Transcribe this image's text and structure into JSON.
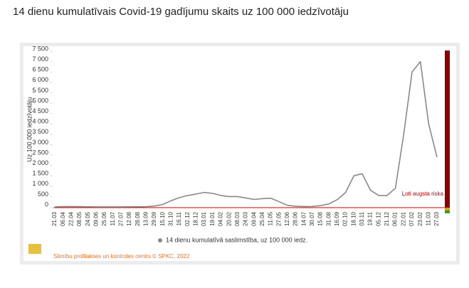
{
  "chart_data": {
    "type": "line",
    "title": "14 dienu kumulatīvais Covid-19 gadījumu skaits uz 100 000 iedzīvotāju",
    "y_label": "Uz 100 000 iedzīvotāju",
    "annotation": "Ļoti augsta riska",
    "footer": "Slimību profilakses un kontroles centrs © SPKC, 2022",
    "categories": [
      "21.03",
      "06.04",
      "22.04",
      "08.05",
      "24.05",
      "09.06",
      "25.06",
      "11.07",
      "27.07",
      "12.08",
      "28.08",
      "13.09",
      "29.09",
      "15.10",
      "31.10",
      "16.11",
      "02.12",
      "18.12",
      "03.01",
      "19.01",
      "04.02",
      "20.02",
      "08.03",
      "24.03",
      "09.04",
      "25.04",
      "11.05",
      "27.05",
      "12.06",
      "28.06",
      "14.07",
      "30.07",
      "15.08",
      "31.08",
      "16.09",
      "02.10",
      "18.10",
      "03.11",
      "19.11",
      "05.12",
      "21.12",
      "06.01",
      "22.01",
      "07.02",
      "23.02",
      "11.03",
      "27.03"
    ],
    "series": [
      {
        "name": "14 dienu kumulatīvā saslimstība, uz 100 000 iedz.",
        "color": "#888888",
        "values": [
          5,
          15,
          20,
          15,
          8,
          5,
          3,
          3,
          5,
          8,
          10,
          15,
          40,
          120,
          300,
          450,
          550,
          620,
          700,
          650,
          550,
          500,
          500,
          430,
          360,
          400,
          420,
          250,
          80,
          30,
          20,
          25,
          60,
          150,
          350,
          700,
          1500,
          1600,
          800,
          550,
          550,
          900,
          3500,
          6500,
          7000,
          4000,
          2400
        ]
      }
    ],
    "ylim": [
      0,
      7500
    ],
    "yticks": [
      0,
      500,
      {
        "value": 1000,
        "label": "1 000"
      },
      {
        "value": 1500,
        "label": "1 500"
      },
      {
        "value": 2000,
        "label": "2 000"
      },
      {
        "value": 2500,
        "label": "2 500"
      },
      {
        "value": 3000,
        "label": "3 000"
      },
      {
        "value": 3500,
        "label": "3 500"
      },
      {
        "value": 4000,
        "label": "4 000"
      },
      {
        "value": 4500,
        "label": "4 500"
      },
      {
        "value": 5000,
        "label": "5 000"
      },
      {
        "value": 5500,
        "label": "5 500"
      },
      {
        "value": 6000,
        "label": "6 000"
      },
      {
        "value": 6500,
        "label": "6 500"
      },
      {
        "value": 7000,
        "label": "7 000"
      },
      {
        "value": 7500,
        "label": "7 500"
      }
    ],
    "grid": false
  }
}
